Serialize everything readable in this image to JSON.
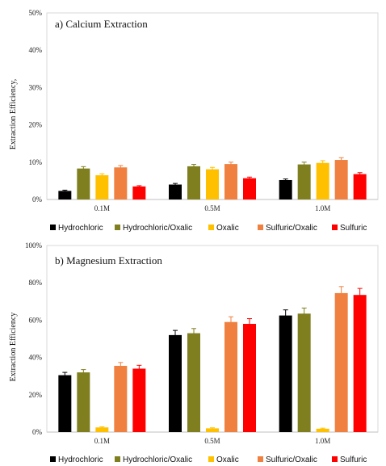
{
  "chart_data": [
    {
      "type": "bar",
      "title": "a) Calcium  Extraction",
      "ylabel": "Extraction Efficiency,",
      "xlabel": "",
      "categories": [
        "0.1M",
        "0.5M",
        "1.0M"
      ],
      "ylim": [
        0,
        50
      ],
      "yticks": [
        "0%",
        "10%",
        "20%",
        "30%",
        "40%",
        "50%"
      ],
      "grid": false,
      "legend_position": "bottom",
      "series": [
        {
          "name": "Hydrochloric",
          "color": "#000000",
          "values": [
            2.3,
            4.0,
            5.2
          ],
          "errors": [
            0.2,
            0.3,
            0.3
          ]
        },
        {
          "name": "Hydrochloric/Oxalic",
          "color": "#7f7f1f",
          "values": [
            8.3,
            8.9,
            9.4
          ],
          "errors": [
            0.5,
            0.5,
            0.6
          ]
        },
        {
          "name": "Oxalic",
          "color": "#ffc000",
          "values": [
            6.5,
            8.1,
            9.8
          ],
          "errors": [
            0.4,
            0.5,
            0.6
          ]
        },
        {
          "name": "Sulfuric/Oxalic",
          "color": "#f08040",
          "values": [
            8.6,
            9.5,
            10.6
          ],
          "errors": [
            0.5,
            0.5,
            0.6
          ]
        },
        {
          "name": "Sulfuric",
          "color": "#ff0000",
          "values": [
            3.5,
            5.7,
            6.8
          ],
          "errors": [
            0.2,
            0.3,
            0.4
          ]
        }
      ]
    },
    {
      "type": "bar",
      "title": "b) Magnesium  Extraction",
      "ylabel": "Extraction Efficiency",
      "xlabel": "",
      "categories": [
        "0.1M",
        "0.5M",
        "1.0M"
      ],
      "ylim": [
        0,
        100
      ],
      "yticks": [
        "0%",
        "20%",
        "40%",
        "60%",
        "80%",
        "100%"
      ],
      "grid": false,
      "legend_position": "bottom",
      "series": [
        {
          "name": "Hydrochloric",
          "color": "#000000",
          "values": [
            30.5,
            52.0,
            62.5
          ],
          "errors": [
            1.5,
            2.5,
            3.0
          ]
        },
        {
          "name": "Hydrochloric/Oxalic",
          "color": "#7f7f1f",
          "values": [
            32.0,
            53.0,
            63.5
          ],
          "errors": [
            1.5,
            2.5,
            3.0
          ]
        },
        {
          "name": "Oxalic",
          "color": "#ffc000",
          "values": [
            2.5,
            2.0,
            1.8
          ],
          "errors": [
            0.3,
            0.3,
            0.3
          ]
        },
        {
          "name": "Sulfuric/Oxalic",
          "color": "#f08040",
          "values": [
            35.5,
            59.0,
            74.5
          ],
          "errors": [
            1.8,
            2.8,
            3.5
          ]
        },
        {
          "name": "Sulfuric",
          "color": "#ff0000",
          "values": [
            34.0,
            58.0,
            73.5
          ],
          "errors": [
            1.8,
            2.8,
            3.5
          ]
        }
      ]
    }
  ]
}
